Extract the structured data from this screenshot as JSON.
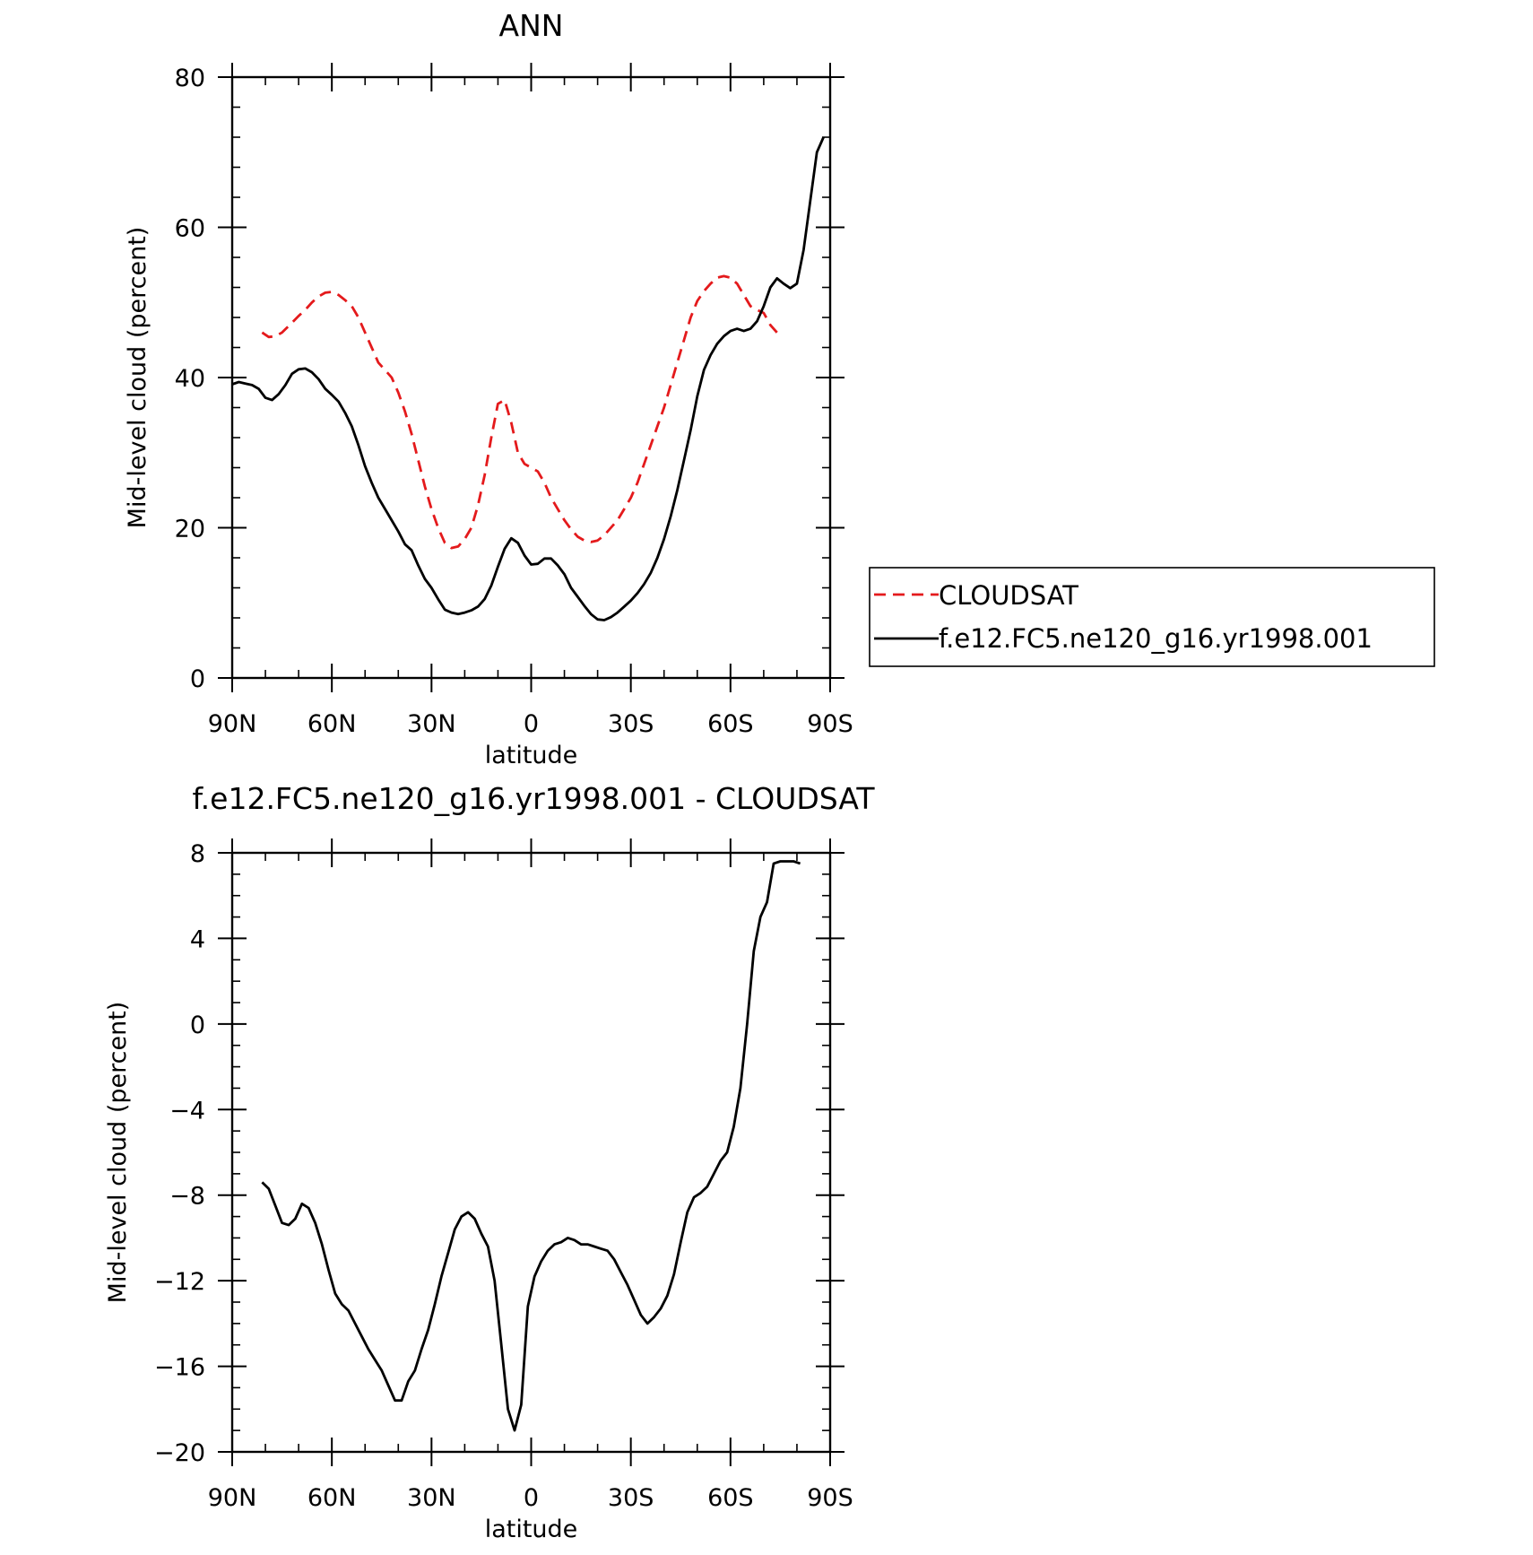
{
  "chart_data": [
    {
      "type": "line",
      "title": "ANN",
      "xlabel": "latitude",
      "ylabel": "Mid-level cloud (percent)",
      "xlim": [
        90,
        -90
      ],
      "ylim": [
        0,
        80
      ],
      "xticks": [
        90,
        60,
        30,
        0,
        -30,
        -60,
        -90
      ],
      "xtick_labels": [
        "90N",
        "60N",
        "30N",
        "0",
        "30S",
        "60S",
        "90S"
      ],
      "yticks": [
        0,
        20,
        40,
        60,
        80
      ],
      "ytick_labels": [
        "0",
        "20",
        "40",
        "60",
        "80"
      ],
      "grid": false,
      "legend": "right",
      "series": [
        {
          "name": "CLOUDSAT",
          "color": "#e41a1c",
          "dash": "dashed",
          "x": [
            81,
            79,
            77,
            75,
            72,
            70,
            68,
            66,
            64,
            62,
            60,
            58,
            56,
            54,
            52,
            50,
            48,
            46,
            44,
            42,
            40,
            38,
            36,
            34,
            32,
            30,
            28,
            26,
            24,
            22,
            20,
            18,
            16,
            14,
            12,
            10,
            8,
            6,
            4,
            2,
            0,
            -2,
            -4,
            -6,
            -8,
            -10,
            -12,
            -14,
            -16,
            -18,
            -20,
            -22,
            -24,
            -26,
            -28,
            -30,
            -32,
            -34,
            -36,
            -38,
            -40,
            -42,
            -44,
            -46,
            -48,
            -50,
            -52,
            -54,
            -56,
            -58,
            -60,
            -62,
            -64,
            -66,
            -68,
            -70,
            -72,
            -74,
            -76,
            -78,
            -80,
            -82
          ],
          "y": [
            46,
            45.4,
            45.5,
            46,
            47.3,
            48.2,
            49,
            50,
            50.8,
            51.3,
            51.4,
            51,
            50.3,
            49.5,
            48,
            46,
            44,
            42,
            41,
            40,
            38,
            35.5,
            32.5,
            29,
            25.5,
            22.5,
            20,
            18,
            17.3,
            17.5,
            18.5,
            20,
            23,
            27,
            32,
            36.5,
            37,
            34,
            30,
            28.5,
            28,
            27.5,
            26,
            24,
            22.5,
            21,
            19.8,
            18.8,
            18.3,
            18.1,
            18.3,
            19,
            20,
            21,
            22.5,
            24,
            26,
            28.5,
            31,
            33.5,
            36,
            39,
            42,
            45,
            48,
            50.2,
            51.5,
            52.5,
            53.3,
            53.5,
            53.3,
            52.5,
            51,
            49.5,
            49,
            48.6,
            47,
            46,
            44.5,
            44.2,
            44,
            44
          ],
          "x_end_index": 77
        },
        {
          "name": "f.e12.FC5.ne120_g16.yr1998.001",
          "color": "#000000",
          "dash": "solid",
          "x": [
            90,
            88,
            86,
            84,
            82,
            80,
            78,
            76,
            74,
            72,
            70,
            68,
            66,
            64,
            62,
            60,
            58,
            56,
            54,
            52,
            50,
            48,
            46,
            44,
            42,
            40,
            38,
            36,
            34,
            32,
            30,
            28,
            26,
            24,
            22,
            20,
            18,
            16,
            14,
            12,
            10,
            8,
            6,
            4,
            2,
            0,
            -2,
            -4,
            -6,
            -8,
            -10,
            -12,
            -14,
            -16,
            -18,
            -20,
            -22,
            -24,
            -26,
            -28,
            -30,
            -32,
            -34,
            -36,
            -38,
            -40,
            -42,
            -44,
            -46,
            -48,
            -50,
            -52,
            -54,
            -56,
            -58,
            -60,
            -62,
            -64,
            -66,
            -68,
            -70,
            -72,
            -74,
            -76,
            -78,
            -80,
            -82,
            -84,
            -86,
            -88
          ],
          "y": [
            39.1,
            39.4,
            39.2,
            39,
            38.5,
            37.3,
            37,
            37.8,
            39,
            40.5,
            41.1,
            41.2,
            40.7,
            39.8,
            38.5,
            37.7,
            36.8,
            35.3,
            33.5,
            31,
            28.2,
            26,
            24,
            22.5,
            21,
            19.5,
            17.8,
            17,
            15,
            13.2,
            12,
            10.5,
            9.1,
            8.7,
            8.5,
            8.7,
            9,
            9.5,
            10.5,
            12.3,
            14.8,
            17.2,
            18.6,
            18,
            16.3,
            15.1,
            15.2,
            15.9,
            15.9,
            15,
            13.8,
            12,
            10.8,
            9.6,
            8.5,
            7.8,
            7.7,
            8.1,
            8.7,
            9.5,
            10.3,
            11.3,
            12.5,
            14,
            16,
            18.5,
            21.5,
            25,
            29,
            33,
            37.5,
            41,
            43,
            44.5,
            45.5,
            46.2,
            46.5,
            46.2,
            46.5,
            47.5,
            49.5,
            52,
            53.2,
            52.5,
            51.9,
            52.5,
            57,
            63.5,
            70,
            72
          ]
        }
      ]
    },
    {
      "type": "line",
      "title": "f.e12.FC5.ne120_g16.yr1998.001 - CLOUDSAT",
      "xlabel": "latitude",
      "ylabel": "Mid-level cloud (percent)",
      "xlim": [
        90,
        -90
      ],
      "ylim": [
        -20,
        8
      ],
      "xticks": [
        90,
        60,
        30,
        0,
        -30,
        -60,
        -90
      ],
      "xtick_labels": [
        "90N",
        "60N",
        "30N",
        "0",
        "30S",
        "60S",
        "90S"
      ],
      "yticks": [
        -20,
        -16,
        -12,
        -8,
        -4,
        0,
        4,
        8
      ],
      "ytick_labels": [
        "−20",
        "−16",
        "−12",
        "−8",
        "−4",
        "0",
        "4",
        "8"
      ],
      "grid": false,
      "series": [
        {
          "color": "#000000",
          "dash": "solid",
          "x": [
            81,
            79,
            77,
            75,
            73,
            71,
            69,
            67,
            65,
            63,
            61,
            59,
            57,
            55,
            53,
            51,
            49,
            47,
            45,
            43,
            41,
            39,
            37,
            35,
            33,
            31,
            29,
            27,
            25,
            23,
            21,
            19,
            17,
            15,
            13,
            11,
            9,
            7,
            5,
            3,
            1,
            -1,
            -3,
            -5,
            -7,
            -9,
            -11,
            -13,
            -15,
            -17,
            -19,
            -21,
            -23,
            -25,
            -27,
            -29,
            -31,
            -33,
            -35,
            -37,
            -39,
            -41,
            -43,
            -45,
            -47,
            -49,
            -51,
            -53,
            -55,
            -57,
            -59,
            -61,
            -63,
            -65,
            -67,
            -69,
            -71,
            -73,
            -75,
            -77,
            -79,
            -81
          ],
          "y": [
            -7.4,
            -7.7,
            -8.5,
            -9.3,
            -9.4,
            -9.1,
            -8.4,
            -8.6,
            -9.3,
            -10.3,
            -11.5,
            -12.6,
            -13.1,
            -13.4,
            -14,
            -14.6,
            -15.2,
            -15.7,
            -16.2,
            -16.9,
            -17.6,
            -17.6,
            -16.7,
            -16.2,
            -15.2,
            -14.3,
            -13.1,
            -11.8,
            -10.7,
            -9.6,
            -9,
            -8.8,
            -9.1,
            -9.8,
            -10.4,
            -12,
            -15,
            -18,
            -19,
            -17.8,
            -13.2,
            -11.8,
            -11.1,
            -10.6,
            -10.3,
            -10.2,
            -10,
            -10.1,
            -10.3,
            -10.3,
            -10.4,
            -10.5,
            -10.6,
            -11,
            -11.6,
            -12.2,
            -12.9,
            -13.6,
            -14,
            -13.7,
            -13.3,
            -12.7,
            -11.7,
            -10.2,
            -8.8,
            -8.1,
            -7.9,
            -7.6,
            -7,
            -6.4,
            -6,
            -4.8,
            -3,
            0,
            3.4,
            5,
            5.7,
            7.5,
            7.6,
            7.6,
            7.6,
            7.5
          ]
        }
      ]
    }
  ],
  "legend": {
    "items": [
      {
        "label": "CLOUDSAT",
        "color": "#e41a1c",
        "dash": "dashed"
      },
      {
        "label": "f.e12.FC5.ne120_g16.yr1998.001",
        "color": "#000000",
        "dash": "solid"
      }
    ]
  }
}
